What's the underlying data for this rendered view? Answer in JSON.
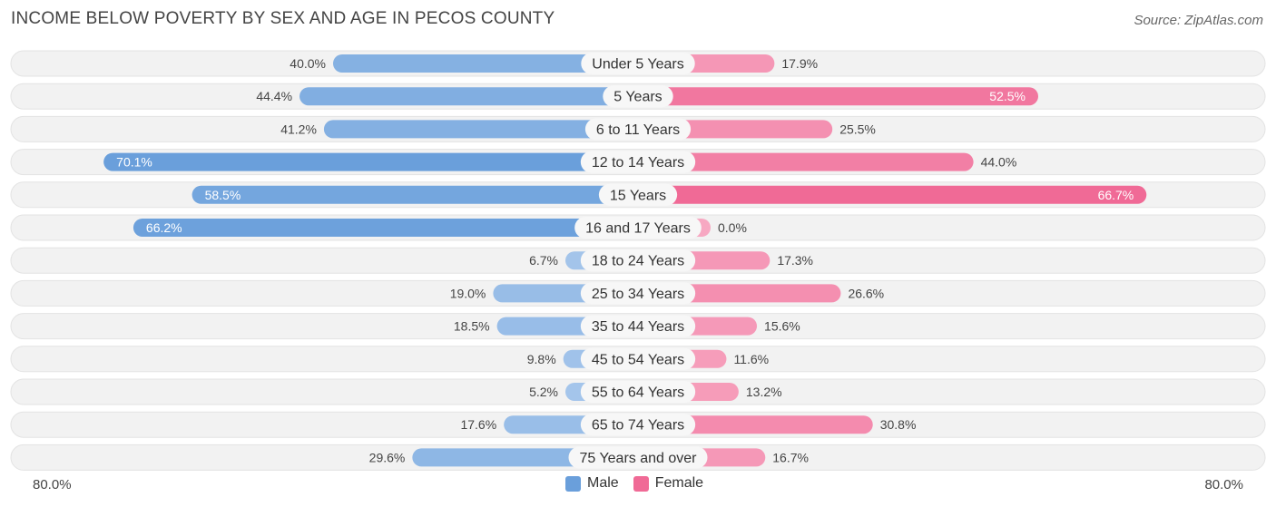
{
  "header": {
    "title": "INCOME BELOW POVERTY BY SEX AND AGE IN PECOS COUNTY",
    "source": "Source: ZipAtlas.com"
  },
  "footer": {
    "left_axis_label": "80.0%",
    "right_axis_label": "80.0%"
  },
  "legend": {
    "male_label": "Male",
    "female_label": "Female"
  },
  "colors": {
    "male": "#6a9fdb",
    "male_light": "#a9c8ec",
    "female": "#f06a96",
    "female_light": "#f7a8c2",
    "row_bg": "#f1f1f1"
  },
  "chart_data": {
    "type": "bar",
    "orientation": "horizontal-diverging",
    "title": "INCOME BELOW POVERTY BY SEX AND AGE IN PECOS COUNTY",
    "xlim": [
      -80,
      80
    ],
    "categories": [
      "Under 5 Years",
      "5 Years",
      "6 to 11 Years",
      "12 to 14 Years",
      "15 Years",
      "16 and 17 Years",
      "18 to 24 Years",
      "25 to 34 Years",
      "35 to 44 Years",
      "45 to 54 Years",
      "55 to 64 Years",
      "65 to 74 Years",
      "75 Years and over"
    ],
    "series": [
      {
        "name": "Male",
        "values": [
          40.0,
          44.4,
          41.2,
          70.1,
          58.5,
          66.2,
          6.7,
          19.0,
          18.5,
          9.8,
          5.2,
          17.6,
          29.6
        ]
      },
      {
        "name": "Female",
        "values": [
          17.9,
          52.5,
          25.5,
          44.0,
          66.7,
          0.0,
          17.3,
          26.6,
          15.6,
          11.6,
          13.2,
          30.8,
          16.7
        ]
      }
    ],
    "value_labels_male": [
      "40.0%",
      "44.4%",
      "41.2%",
      "70.1%",
      "58.5%",
      "66.2%",
      "6.7%",
      "19.0%",
      "18.5%",
      "9.8%",
      "5.2%",
      "17.6%",
      "29.6%"
    ],
    "value_labels_female": [
      "17.9%",
      "52.5%",
      "25.5%",
      "44.0%",
      "66.7%",
      "0.0%",
      "17.3%",
      "26.6%",
      "15.6%",
      "11.6%",
      "13.2%",
      "30.8%",
      "16.7%"
    ],
    "legend_position": "bottom-center",
    "grid": false
  }
}
